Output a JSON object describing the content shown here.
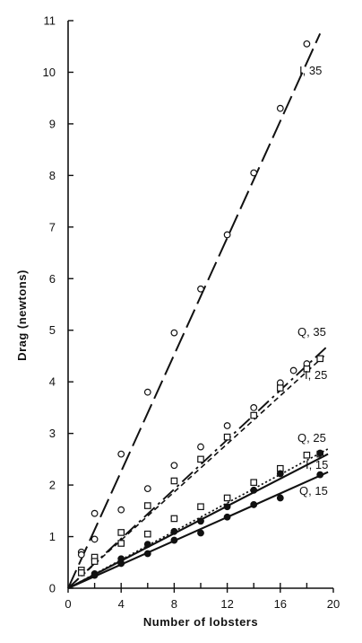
{
  "chart_data": {
    "type": "line",
    "title": "",
    "xlabel": "Number of lobsters",
    "ylabel": "Drag (newtons)",
    "xlim": [
      0,
      20
    ],
    "ylim": [
      0,
      11
    ],
    "x_ticks": [
      0,
      4,
      8,
      12,
      16,
      20
    ],
    "y_ticks": [
      0,
      1,
      2,
      3,
      4,
      5,
      6,
      7,
      8,
      9,
      10,
      11
    ],
    "grid": false,
    "legend": "none",
    "series": [
      {
        "name": "I, 35",
        "marker": "open-circle",
        "line_style": "long-dash",
        "fit": [
          [
            0,
            0
          ],
          [
            19,
            10.75
          ]
        ],
        "points": [
          [
            1,
            0.7
          ],
          [
            2,
            1.45
          ],
          [
            4,
            2.6
          ],
          [
            6,
            3.8
          ],
          [
            8,
            4.95
          ],
          [
            10,
            5.8
          ],
          [
            12,
            6.85
          ],
          [
            14,
            8.05
          ],
          [
            16,
            9.3
          ],
          [
            18,
            10.55
          ]
        ]
      },
      {
        "name": "Q, 35",
        "marker": "open-circle",
        "line_style": "long-dash-dot",
        "fit": [
          [
            0,
            0
          ],
          [
            19.6,
            4.7
          ]
        ],
        "points": [
          [
            1,
            0.65
          ],
          [
            2,
            0.95
          ],
          [
            4,
            1.52
          ],
          [
            6,
            1.93
          ],
          [
            8,
            2.38
          ],
          [
            10,
            2.74
          ],
          [
            12,
            3.15
          ],
          [
            14,
            3.5
          ],
          [
            16,
            3.98
          ],
          [
            17,
            4.22
          ],
          [
            18,
            4.35
          ]
        ]
      },
      {
        "name": "I, 25",
        "marker": "open-square",
        "line_style": "short-dash",
        "fit": [
          [
            0,
            0
          ],
          [
            19.3,
            4.5
          ]
        ],
        "points": [
          [
            1,
            0.35
          ],
          [
            2,
            0.6
          ],
          [
            4,
            1.08
          ],
          [
            6,
            1.6
          ],
          [
            8,
            2.08
          ],
          [
            10,
            2.5
          ],
          [
            12,
            2.93
          ],
          [
            14,
            3.35
          ],
          [
            16,
            3.88
          ],
          [
            18,
            4.25
          ],
          [
            19,
            4.45
          ]
        ]
      },
      {
        "name": "Q, 25",
        "marker": "open-square",
        "line_style": "dotted",
        "fit": [
          [
            0,
            0
          ],
          [
            19.6,
            2.7
          ]
        ],
        "points": [
          [
            1,
            0.3
          ],
          [
            2,
            0.52
          ],
          [
            4,
            0.87
          ],
          [
            6,
            1.05
          ],
          [
            8,
            1.35
          ],
          [
            10,
            1.58
          ],
          [
            12,
            1.75
          ],
          [
            14,
            2.05
          ],
          [
            16,
            2.32
          ],
          [
            18,
            2.58
          ],
          [
            19,
            2.6
          ]
        ]
      },
      {
        "name": "I, 15",
        "marker": "filled-circle",
        "line_style": "solid",
        "fit": [
          [
            0,
            0
          ],
          [
            19.6,
            2.6
          ]
        ],
        "points": [
          [
            2,
            0.28
          ],
          [
            4,
            0.57
          ],
          [
            6,
            0.85
          ],
          [
            8,
            1.1
          ],
          [
            10,
            1.3
          ],
          [
            12,
            1.58
          ],
          [
            14,
            1.9
          ],
          [
            16,
            2.22
          ],
          [
            19,
            2.62
          ]
        ]
      },
      {
        "name": "Q, 15",
        "marker": "filled-circle",
        "line_style": "solid",
        "fit": [
          [
            0,
            0
          ],
          [
            19.6,
            2.25
          ]
        ],
        "points": [
          [
            2,
            0.25
          ],
          [
            4,
            0.48
          ],
          [
            6,
            0.67
          ],
          [
            8,
            0.93
          ],
          [
            10,
            1.07
          ],
          [
            12,
            1.38
          ],
          [
            14,
            1.62
          ],
          [
            16,
            1.75
          ],
          [
            19,
            2.2
          ]
        ]
      }
    ],
    "series_labels": [
      "I, 35",
      "Q, 35",
      "I, 25",
      "Q, 25",
      "I, 15",
      "Q, 15"
    ],
    "colors": {
      "ink": "#111111",
      "background": "#ffffff"
    }
  }
}
